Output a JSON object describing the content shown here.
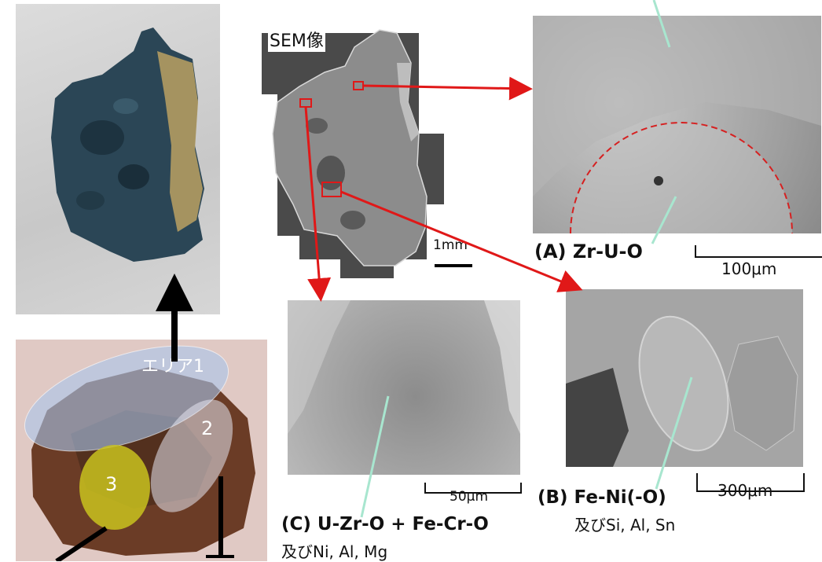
{
  "sem": {
    "title": "SEM像",
    "scale_bar_1mm": "1mm",
    "scale_bar_100um": "100μm",
    "scale_bar_300um": "300μm",
    "scale_bar_50um": "50μm"
  },
  "regions": {
    "A": {
      "label": "(A) Zr-U-O"
    },
    "B": {
      "label": "(B) Fe-Ni(-O)",
      "minor": "及びSi, Al, Sn"
    },
    "C": {
      "label": "(C) U-Zr-O + Fe-Cr-O",
      "minor": "及びNi, Al, Mg"
    }
  },
  "sample_areas": {
    "area1": "エリア1",
    "area2": "2",
    "area3": "3"
  },
  "colors": {
    "arrow_red": "#e01818",
    "pointer_line": "#a8e6cf",
    "area1_fill": "#a9c7ec",
    "area2_fill": "#d8d8e8",
    "area3_fill": "#c9c21e"
  }
}
